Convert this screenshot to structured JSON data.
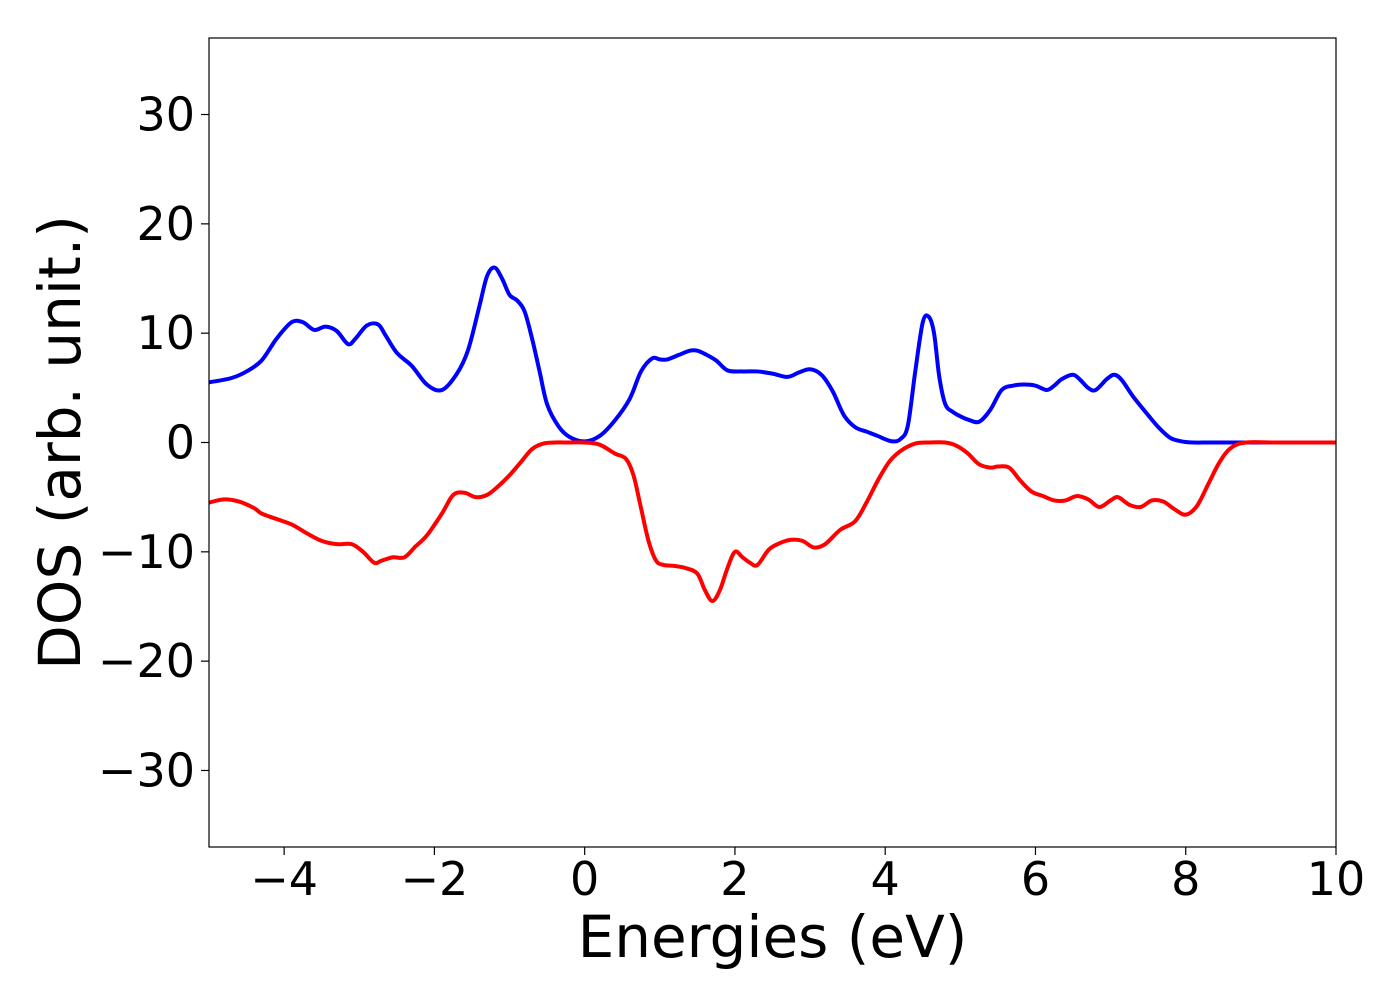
{
  "chart_data": {
    "type": "line",
    "title": "",
    "xlabel": "Energies (eV)",
    "ylabel": "DOS (arb. unit.)",
    "xlim": [
      -5,
      10
    ],
    "ylim": [
      -37,
      37
    ],
    "xticks": [
      -4,
      -2,
      0,
      2,
      4,
      6,
      8,
      10
    ],
    "xtick_labels": [
      "−4",
      "−2",
      "0",
      "2",
      "4",
      "6",
      "8",
      "10"
    ],
    "yticks": [
      30,
      20,
      10,
      0,
      -10,
      -20,
      -30
    ],
    "ytick_labels": [
      "30",
      "20",
      "10",
      "0",
      "−10",
      "−20",
      "−30"
    ],
    "grid": false,
    "legend": "none",
    "series": [
      {
        "color": "#0000ff",
        "x": [
          -5.0,
          -4.7,
          -4.5,
          -4.3,
          -4.1,
          -3.9,
          -3.75,
          -3.6,
          -3.45,
          -3.3,
          -3.15,
          -3.05,
          -2.9,
          -2.75,
          -2.65,
          -2.5,
          -2.3,
          -2.1,
          -1.9,
          -1.7,
          -1.55,
          -1.4,
          -1.3,
          -1.2,
          -1.1,
          -1.0,
          -0.9,
          -0.8,
          -0.7,
          -0.6,
          -0.5,
          -0.35,
          -0.2,
          0.0,
          0.2,
          0.4,
          0.6,
          0.75,
          0.9,
          1.0,
          1.1,
          1.25,
          1.4,
          1.5,
          1.6,
          1.75,
          1.9,
          2.1,
          2.3,
          2.5,
          2.7,
          2.85,
          3.0,
          3.15,
          3.3,
          3.45,
          3.6,
          3.75,
          3.9,
          4.0,
          4.1,
          4.2,
          4.3,
          4.4,
          4.5,
          4.58,
          4.65,
          4.72,
          4.8,
          4.9,
          5.0,
          5.1,
          5.25,
          5.4,
          5.55,
          5.7,
          5.85,
          6.0,
          6.15,
          6.25,
          6.35,
          6.5,
          6.6,
          6.7,
          6.8,
          6.95,
          7.05,
          7.15,
          7.3,
          7.5,
          7.65,
          7.8,
          7.95,
          8.1,
          8.3,
          8.6,
          9.0,
          10.0
        ],
        "y": [
          5.5,
          5.9,
          6.5,
          7.5,
          9.5,
          11.0,
          11.0,
          10.3,
          10.6,
          10.2,
          9.0,
          9.5,
          10.7,
          10.8,
          9.8,
          8.2,
          7.0,
          5.3,
          4.8,
          6.3,
          8.5,
          12.5,
          15.2,
          16.0,
          15.0,
          13.5,
          13.0,
          12.0,
          9.5,
          6.5,
          3.5,
          1.5,
          0.5,
          0.1,
          0.6,
          2.0,
          4.0,
          6.5,
          7.7,
          7.6,
          7.6,
          8.0,
          8.4,
          8.4,
          8.1,
          7.5,
          6.6,
          6.5,
          6.5,
          6.3,
          6.0,
          6.4,
          6.7,
          6.2,
          4.7,
          2.5,
          1.4,
          1.0,
          0.6,
          0.3,
          0.1,
          0.3,
          1.5,
          6.5,
          11.0,
          11.5,
          10.0,
          6.0,
          3.5,
          2.8,
          2.4,
          2.1,
          1.9,
          3.0,
          4.8,
          5.2,
          5.3,
          5.2,
          4.8,
          5.2,
          5.8,
          6.2,
          5.7,
          5.0,
          4.8,
          5.8,
          6.2,
          5.7,
          4.2,
          2.5,
          1.3,
          0.4,
          0.1,
          0.0,
          0.0,
          0.0,
          0.0,
          0.0
        ]
      },
      {
        "color": "#ff0000",
        "x": [
          -5.0,
          -4.8,
          -4.6,
          -4.4,
          -4.3,
          -4.1,
          -3.9,
          -3.7,
          -3.5,
          -3.3,
          -3.1,
          -2.95,
          -2.8,
          -2.7,
          -2.55,
          -2.4,
          -2.25,
          -2.1,
          -1.9,
          -1.75,
          -1.6,
          -1.45,
          -1.3,
          -1.15,
          -1.0,
          -0.85,
          -0.7,
          -0.55,
          -0.4,
          -0.2,
          0.0,
          0.2,
          0.4,
          0.55,
          0.65,
          0.75,
          0.85,
          0.95,
          1.05,
          1.2,
          1.35,
          1.5,
          1.6,
          1.7,
          1.8,
          1.9,
          2.0,
          2.1,
          2.2,
          2.3,
          2.45,
          2.6,
          2.75,
          2.9,
          3.05,
          3.2,
          3.4,
          3.6,
          3.75,
          3.9,
          4.05,
          4.2,
          4.4,
          4.6,
          4.8,
          4.95,
          5.1,
          5.25,
          5.4,
          5.5,
          5.65,
          5.8,
          5.95,
          6.1,
          6.25,
          6.4,
          6.55,
          6.7,
          6.85,
          7.0,
          7.1,
          7.25,
          7.4,
          7.55,
          7.7,
          7.85,
          8.0,
          8.15,
          8.3,
          8.45,
          8.6,
          8.8,
          9.2,
          10.0
        ],
        "y": [
          -5.5,
          -5.2,
          -5.4,
          -6.0,
          -6.5,
          -7.0,
          -7.5,
          -8.3,
          -9.0,
          -9.3,
          -9.3,
          -10.0,
          -11.0,
          -10.8,
          -10.5,
          -10.5,
          -9.5,
          -8.5,
          -6.5,
          -4.8,
          -4.6,
          -5.0,
          -4.8,
          -4.0,
          -3.0,
          -1.8,
          -0.6,
          -0.1,
          0.0,
          0.0,
          0.0,
          -0.2,
          -1.0,
          -1.5,
          -3.0,
          -6.0,
          -9.0,
          -10.8,
          -11.2,
          -11.3,
          -11.5,
          -12.0,
          -13.5,
          -14.5,
          -13.5,
          -11.5,
          -10.0,
          -10.5,
          -11.0,
          -11.2,
          -9.8,
          -9.2,
          -8.9,
          -9.0,
          -9.6,
          -9.3,
          -8.0,
          -7.2,
          -5.5,
          -3.5,
          -1.8,
          -0.8,
          -0.1,
          0.0,
          0.0,
          -0.3,
          -1.0,
          -2.0,
          -2.3,
          -2.2,
          -2.3,
          -3.5,
          -4.5,
          -4.9,
          -5.3,
          -5.3,
          -4.9,
          -5.2,
          -5.9,
          -5.3,
          -5.0,
          -5.7,
          -5.9,
          -5.3,
          -5.4,
          -6.1,
          -6.6,
          -5.8,
          -3.8,
          -1.8,
          -0.5,
          0.0,
          0.0,
          0.0
        ]
      }
    ]
  }
}
